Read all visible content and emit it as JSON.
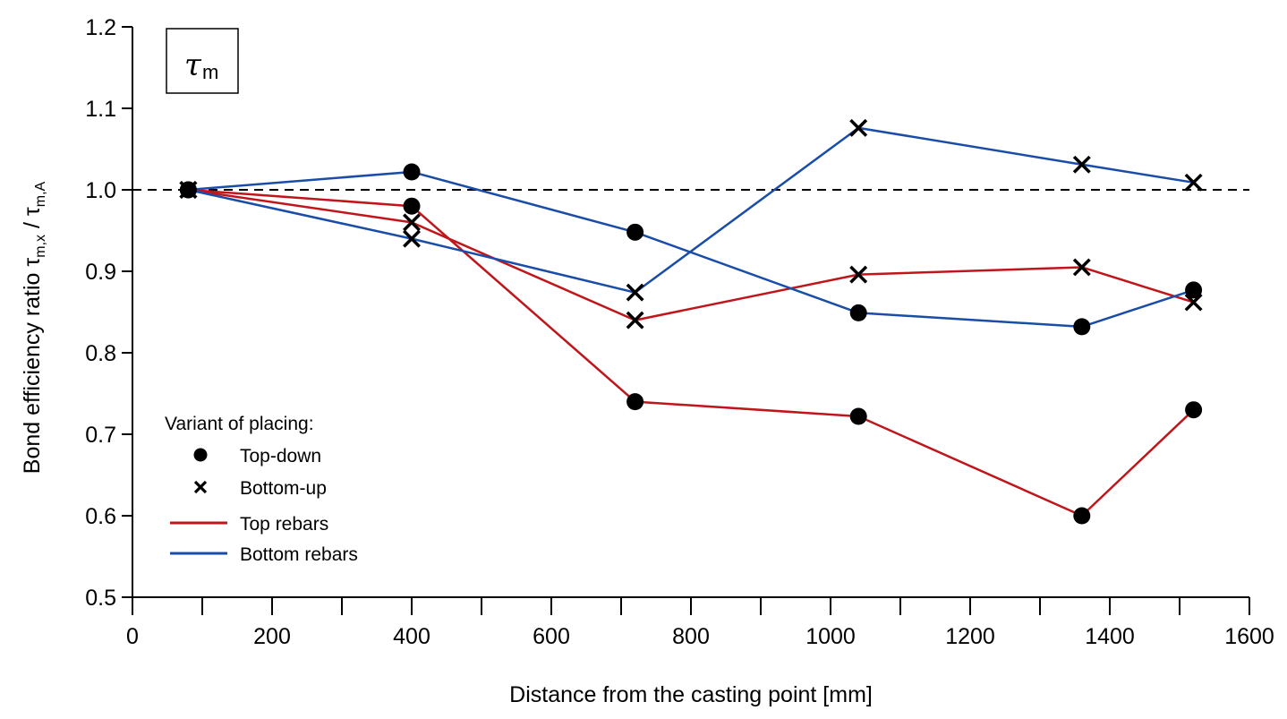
{
  "chart_data": {
    "type": "line",
    "title": "",
    "inset_label": {
      "symbol": "τ",
      "subscript": "m"
    },
    "xlabel": "Distance from the casting point [mm]",
    "ylabel": {
      "main": "Bond efficiency ratio τ",
      "sub1": "m,x",
      "mid": " / τ",
      "sub2": "m,A"
    },
    "xlim": [
      0,
      1600
    ],
    "ylim": [
      0.5,
      1.2
    ],
    "x_ticks": [
      0,
      200,
      400,
      600,
      800,
      1000,
      1200,
      1400,
      1600
    ],
    "x_ticks_minor": [
      100,
      300,
      500,
      700,
      900,
      1100,
      1300,
      1500
    ],
    "y_ticks": [
      0.5,
      0.6,
      0.7,
      0.8,
      0.9,
      1.0,
      1.1,
      1.2
    ],
    "x_tick_labels": [
      "0",
      "200",
      "400",
      "600",
      "800",
      "1000",
      "1200",
      "1400",
      "1600"
    ],
    "y_tick_labels": [
      "0.5",
      "0.6",
      "0.7",
      "0.8",
      "0.9",
      "1.0",
      "1.1",
      "1.2"
    ],
    "reference_line": {
      "y": 1.0,
      "style": "dashed"
    },
    "grid": false,
    "legend_position": "bottom-left",
    "legend": {
      "title": "Variant of placing:",
      "entries": [
        {
          "label": "Top-down",
          "kind": "marker",
          "marker": "circle"
        },
        {
          "label": "Bottom-up",
          "kind": "marker",
          "marker": "cross"
        },
        {
          "label": "Top rebars",
          "kind": "line",
          "color": "#C0161B"
        },
        {
          "label": "Bottom rebars",
          "kind": "line",
          "color": "#1A4DA8"
        }
      ]
    },
    "series": [
      {
        "name": "Top rebars, Top-down",
        "color": "#C0161B",
        "marker": "circle",
        "x": [
          80,
          400,
          720,
          1040,
          1360,
          1520
        ],
        "y": [
          1.0,
          0.98,
          0.74,
          0.722,
          0.6,
          0.73
        ]
      },
      {
        "name": "Top rebars, Bottom-up",
        "color": "#C0161B",
        "marker": "cross",
        "x": [
          80,
          400,
          720,
          1040,
          1360,
          1520
        ],
        "y": [
          1.0,
          0.96,
          0.84,
          0.896,
          0.905,
          0.862
        ]
      },
      {
        "name": "Bottom rebars, Top-down",
        "color": "#1A4DA8",
        "marker": "circle",
        "x": [
          80,
          400,
          720,
          1040,
          1360,
          1520
        ],
        "y": [
          1.0,
          1.022,
          0.948,
          0.849,
          0.832,
          0.877
        ]
      },
      {
        "name": "Bottom rebars, Bottom-up",
        "color": "#1A4DA8",
        "marker": "cross",
        "x": [
          80,
          400,
          720,
          1040,
          1360,
          1520
        ],
        "y": [
          1.0,
          0.94,
          0.874,
          1.076,
          1.031,
          1.009
        ]
      }
    ]
  }
}
